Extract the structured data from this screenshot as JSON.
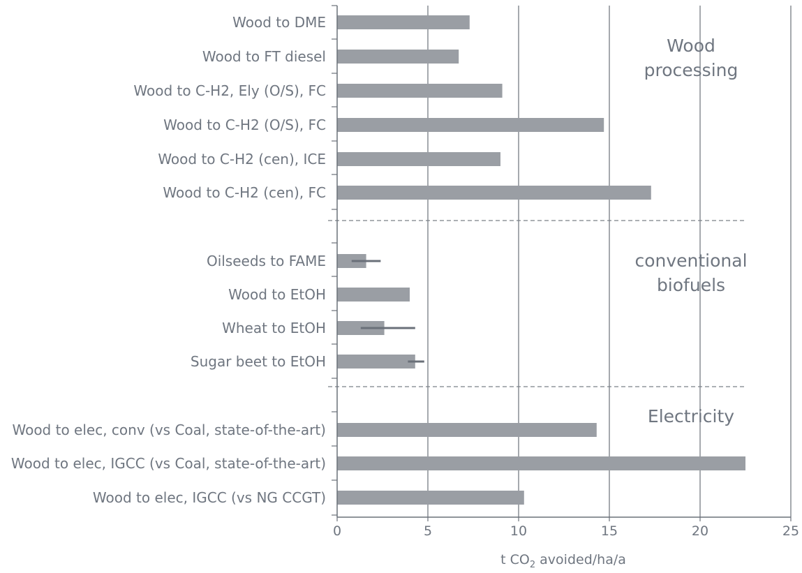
{
  "chart_data": {
    "type": "bar",
    "orientation": "horizontal",
    "categories": [
      "Wood to DME",
      "Wood to FT diesel",
      "Wood to C-H2, Ely (O/S), FC",
      "Wood to C-H2 (O/S), FC",
      "Wood to C-H2 (cen), ICE",
      "Wood to C-H2 (cen), FC",
      "Oilseeds to FAME",
      "Wood to EtOH",
      "Wheat to EtOH",
      "Sugar beet to EtOH",
      "Wood to elec, conv (vs Coal, state-of-the-art)",
      "Wood to elec, IGCC (vs Coal, state-of-the-art)",
      "Wood to elec, IGCC (vs NG CCGT)"
    ],
    "values": [
      7.3,
      6.7,
      9.1,
      14.7,
      9.0,
      17.3,
      1.6,
      4.0,
      2.6,
      4.3,
      14.3,
      22.5,
      10.3
    ],
    "error_ranges": [
      null,
      null,
      null,
      null,
      null,
      null,
      [
        0.8,
        2.4
      ],
      null,
      [
        1.3,
        4.3
      ],
      [
        3.9,
        4.8
      ],
      null,
      null,
      null
    ],
    "groups": [
      {
        "label_lines": [
          "Wood",
          "processing"
        ],
        "categories": [
          "Wood to DME",
          "Wood to FT diesel",
          "Wood to C-H2, Ely (O/S), FC",
          "Wood to C-H2 (O/S), FC",
          "Wood to C-H2 (cen), ICE",
          "Wood to C-H2 (cen), FC"
        ]
      },
      {
        "label_lines": [
          "conventional",
          "biofuels"
        ],
        "categories": [
          "Oilseeds to FAME",
          "Wood to EtOH",
          "Wheat to EtOH",
          "Sugar beet to EtOH"
        ]
      },
      {
        "label_lines": [
          "Electricity"
        ],
        "categories": [
          "Wood to elec, conv (vs Coal, state-of-the-art)",
          "Wood to elec, IGCC (vs Coal, state-of-the-art)",
          "Wood to elec, IGCC (vs NG CCGT)"
        ]
      }
    ],
    "xlabel_parts": [
      "t CO",
      "2",
      " avoided/ha/a"
    ],
    "xlim": [
      0,
      25
    ],
    "xticks": [
      0,
      5,
      10,
      15,
      20,
      25
    ],
    "grid": "vertical",
    "colors": {
      "bar": "#9a9ea4",
      "error": "#6a7079",
      "axis": "#6a7079",
      "grid": "#6a7079",
      "text": "#6f7680",
      "separator": "#7a8088"
    }
  }
}
